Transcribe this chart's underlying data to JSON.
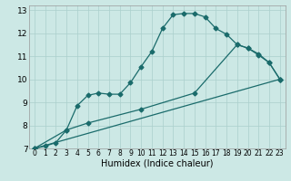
{
  "xlabel": "Humidex (Indice chaleur)",
  "bg_color": "#cce8e5",
  "grid_color": "#aacfcc",
  "line_color": "#1a6b6b",
  "xlim": [
    -0.5,
    23.5
  ],
  "ylim": [
    7,
    13.2
  ],
  "xticks": [
    0,
    1,
    2,
    3,
    4,
    5,
    6,
    7,
    8,
    9,
    10,
    11,
    12,
    13,
    14,
    15,
    16,
    17,
    18,
    19,
    20,
    21,
    22,
    23
  ],
  "yticks": [
    7,
    8,
    9,
    10,
    11,
    12,
    13
  ],
  "line1_x": [
    0,
    1,
    2,
    3,
    4,
    5,
    6,
    7,
    8,
    9,
    10,
    11,
    12,
    13,
    14,
    15,
    16,
    17,
    18,
    19,
    20,
    21,
    22,
    23
  ],
  "line1_y": [
    7.0,
    7.1,
    7.25,
    7.8,
    8.85,
    9.3,
    9.4,
    9.35,
    9.35,
    9.85,
    10.55,
    11.2,
    12.2,
    12.8,
    12.85,
    12.85,
    12.7,
    12.2,
    11.95,
    11.5,
    11.35,
    11.05,
    10.72,
    10.0
  ],
  "line2_x": [
    0,
    3,
    5,
    10,
    15,
    19,
    20,
    21,
    22,
    23
  ],
  "line2_y": [
    7.0,
    7.8,
    8.1,
    8.7,
    9.4,
    11.5,
    11.35,
    11.1,
    10.72,
    10.0
  ],
  "line3_x": [
    0,
    23
  ],
  "line3_y": [
    7.0,
    10.0
  ],
  "marker_size": 2.5,
  "line_width": 0.9
}
